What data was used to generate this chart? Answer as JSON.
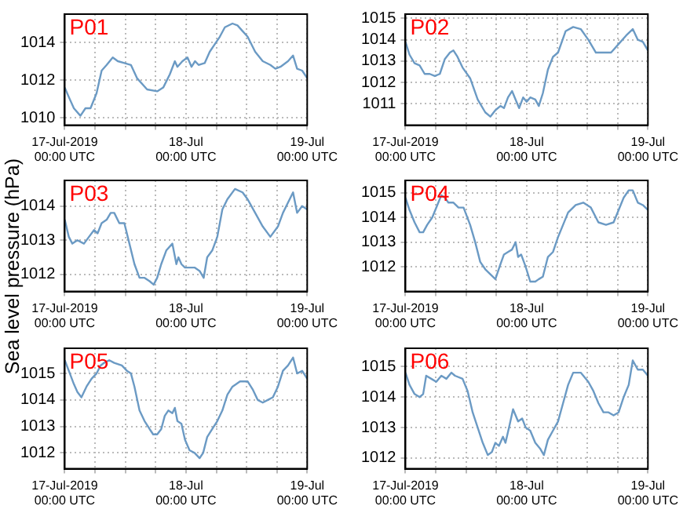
{
  "chart_data": [
    {
      "type": "line",
      "title": "P01",
      "xlim": [
        "2019-07-17T00:00",
        "2019-07-19T00:00"
      ],
      "xticks": [
        {
          "value": "2019-07-17T00:00",
          "label": "17-Jul-2019\n00:00 UTC"
        },
        {
          "value": "2019-07-17T06:00",
          "label": null
        },
        {
          "value": "2019-07-17T12:00",
          "label": null
        },
        {
          "value": "2019-07-17T18:00",
          "label": null
        },
        {
          "value": "2019-07-18T00:00",
          "label": "18-Jul\n00:00 UTC"
        },
        {
          "value": "2019-07-18T06:00",
          "label": null
        },
        {
          "value": "2019-07-18T12:00",
          "label": null
        },
        {
          "value": "2019-07-18T18:00",
          "label": null
        },
        {
          "value": "2019-07-19T00:00",
          "label": "19-Jul\n00:00 UTC"
        }
      ],
      "ylim": [
        1009.6,
        1015.5
      ],
      "yticks": [
        1010,
        1012,
        1014
      ],
      "grid": true,
      "x": [
        "2019-07-17T00:00",
        "2019-07-17T00:48",
        "2019-07-17T01:48",
        "2019-07-17T03:06",
        "2019-07-17T04:06",
        "2019-07-17T05:06",
        "2019-07-17T06:18",
        "2019-07-17T07:18",
        "2019-07-17T08:18",
        "2019-07-17T09:30",
        "2019-07-17T10:30",
        "2019-07-17T11:48",
        "2019-07-17T13:06",
        "2019-07-17T14:18",
        "2019-07-17T16:18",
        "2019-07-17T18:18",
        "2019-07-17T19:30",
        "2019-07-17T20:48",
        "2019-07-17T21:48",
        "2019-07-17T22:18",
        "2019-07-17T23:18",
        "2019-07-18T00:18",
        "2019-07-18T01:06",
        "2019-07-18T01:48",
        "2019-07-18T02:30",
        "2019-07-18T03:42",
        "2019-07-18T04:42",
        "2019-07-18T05:42",
        "2019-07-18T06:42",
        "2019-07-18T07:42",
        "2019-07-18T09:12",
        "2019-07-18T10:12",
        "2019-07-18T11:12",
        "2019-07-18T12:12",
        "2019-07-18T13:42",
        "2019-07-18T15:12",
        "2019-07-18T16:42",
        "2019-07-18T17:42",
        "2019-07-18T18:42",
        "2019-07-18T20:12",
        "2019-07-18T21:12",
        "2019-07-18T22:00",
        "2019-07-18T23:00",
        "2019-07-19T00:00"
      ],
      "series": [
        {
          "color": "#6b9ac4",
          "values": [
            1011.6,
            1011.1,
            1010.5,
            1010.1,
            1010.5,
            1010.5,
            1011.3,
            1012.5,
            1012.8,
            1013.2,
            1013.0,
            1012.9,
            1012.8,
            1012.1,
            1011.5,
            1011.4,
            1011.6,
            1012.3,
            1013.0,
            1012.7,
            1013.0,
            1013.2,
            1012.7,
            1013.0,
            1012.8,
            1012.9,
            1013.5,
            1013.9,
            1014.3,
            1014.8,
            1015.0,
            1014.9,
            1014.6,
            1014.3,
            1013.5,
            1013.0,
            1012.8,
            1012.6,
            1012.7,
            1013.0,
            1013.3,
            1012.6,
            1012.5,
            1012.1
          ]
        }
      ]
    },
    {
      "type": "line",
      "title": "P02",
      "xlim": [
        "2019-07-17T00:00",
        "2019-07-19T00:00"
      ],
      "xticks": [
        {
          "value": "2019-07-17T00:00",
          "label": "17-Jul-2019\n00:00 UTC"
        },
        {
          "value": "2019-07-17T06:00",
          "label": null
        },
        {
          "value": "2019-07-17T12:00",
          "label": null
        },
        {
          "value": "2019-07-17T18:00",
          "label": null
        },
        {
          "value": "2019-07-18T00:00",
          "label": "18-Jul\n00:00 UTC"
        },
        {
          "value": "2019-07-18T06:00",
          "label": null
        },
        {
          "value": "2019-07-18T12:00",
          "label": null
        },
        {
          "value": "2019-07-18T18:00",
          "label": null
        },
        {
          "value": "2019-07-19T00:00",
          "label": "19-Jul\n00:00 UTC"
        }
      ],
      "ylim": [
        1010,
        1015.2
      ],
      "yticks": [
        1011,
        1012,
        1013,
        1014,
        1015
      ],
      "grid": true,
      "x": [
        "2019-07-17T00:00",
        "2019-07-17T00:48",
        "2019-07-17T01:48",
        "2019-07-17T02:48",
        "2019-07-17T03:48",
        "2019-07-17T04:48",
        "2019-07-17T05:48",
        "2019-07-17T06:48",
        "2019-07-17T07:48",
        "2019-07-17T08:48",
        "2019-07-17T09:30",
        "2019-07-17T10:18",
        "2019-07-17T11:18",
        "2019-07-17T12:48",
        "2019-07-17T14:18",
        "2019-07-17T15:48",
        "2019-07-17T16:48",
        "2019-07-17T17:48",
        "2019-07-17T18:48",
        "2019-07-17T19:30",
        "2019-07-17T20:18",
        "2019-07-17T21:06",
        "2019-07-17T21:48",
        "2019-07-17T22:30",
        "2019-07-17T23:18",
        "2019-07-18T00:00",
        "2019-07-18T00:42",
        "2019-07-18T01:42",
        "2019-07-18T02:24",
        "2019-07-18T03:12",
        "2019-07-18T04:12",
        "2019-07-18T05:12",
        "2019-07-18T06:12",
        "2019-07-18T07:42",
        "2019-07-18T09:12",
        "2019-07-18T10:42",
        "2019-07-18T12:12",
        "2019-07-18T13:42",
        "2019-07-18T15:12",
        "2019-07-18T16:42",
        "2019-07-18T18:12",
        "2019-07-18T19:42",
        "2019-07-18T21:00",
        "2019-07-18T22:00",
        "2019-07-18T23:00",
        "2019-07-19T00:00"
      ],
      "series": [
        {
          "color": "#6b9ac4",
          "values": [
            1013.9,
            1013.3,
            1012.9,
            1012.8,
            1012.4,
            1012.4,
            1012.3,
            1012.4,
            1013.1,
            1013.4,
            1013.5,
            1013.2,
            1012.7,
            1012.2,
            1011.2,
            1010.6,
            1010.4,
            1010.7,
            1010.9,
            1010.8,
            1011.3,
            1011.6,
            1011.2,
            1010.8,
            1011.3,
            1011.1,
            1011.3,
            1011.2,
            1010.9,
            1011.5,
            1012.6,
            1013.2,
            1013.4,
            1014.4,
            1014.6,
            1014.5,
            1014.0,
            1013.4,
            1013.4,
            1013.4,
            1013.8,
            1014.2,
            1014.5,
            1014.0,
            1013.9,
            1013.5
          ]
        }
      ]
    },
    {
      "type": "line",
      "title": "P03",
      "ylabel": "Sea level pressure (hPa)",
      "xlim": [
        "2019-07-17T00:00",
        "2019-07-19T00:00"
      ],
      "xticks": [
        {
          "value": "2019-07-17T00:00",
          "label": "17-Jul-2019\n00:00 UTC"
        },
        {
          "value": "2019-07-17T06:00",
          "label": null
        },
        {
          "value": "2019-07-17T12:00",
          "label": null
        },
        {
          "value": "2019-07-17T18:00",
          "label": null
        },
        {
          "value": "2019-07-18T00:00",
          "label": "18-Jul\n00:00 UTC"
        },
        {
          "value": "2019-07-18T06:00",
          "label": null
        },
        {
          "value": "2019-07-18T12:00",
          "label": null
        },
        {
          "value": "2019-07-18T18:00",
          "label": null
        },
        {
          "value": "2019-07-19T00:00",
          "label": "19-Jul\n00:00 UTC"
        }
      ],
      "ylim": [
        1011.5,
        1014.75
      ],
      "yticks": [
        1012,
        1013,
        1014
      ],
      "grid": true,
      "x": [
        "2019-07-17T00:00",
        "2019-07-17T00:48",
        "2019-07-17T01:30",
        "2019-07-17T02:30",
        "2019-07-17T03:48",
        "2019-07-17T04:48",
        "2019-07-17T05:48",
        "2019-07-17T06:30",
        "2019-07-17T07:18",
        "2019-07-17T08:18",
        "2019-07-17T09:06",
        "2019-07-17T09:48",
        "2019-07-17T10:48",
        "2019-07-17T11:48",
        "2019-07-17T12:48",
        "2019-07-17T13:48",
        "2019-07-17T14:48",
        "2019-07-17T15:48",
        "2019-07-17T16:48",
        "2019-07-17T17:36",
        "2019-07-17T18:18",
        "2019-07-17T19:06",
        "2019-07-17T20:06",
        "2019-07-17T21:18",
        "2019-07-17T22:06",
        "2019-07-17T22:30",
        "2019-07-17T23:06",
        "2019-07-17T23:48",
        "2019-07-18T00:42",
        "2019-07-18T01:42",
        "2019-07-18T02:42",
        "2019-07-18T03:30",
        "2019-07-18T04:12",
        "2019-07-18T05:12",
        "2019-07-18T06:12",
        "2019-07-18T07:12",
        "2019-07-18T08:12",
        "2019-07-18T09:42",
        "2019-07-18T11:12",
        "2019-07-18T12:12",
        "2019-07-18T13:42",
        "2019-07-18T15:12",
        "2019-07-18T16:42",
        "2019-07-18T18:12",
        "2019-07-18T19:12",
        "2019-07-18T20:12",
        "2019-07-18T21:12",
        "2019-07-18T22:00",
        "2019-07-18T23:00",
        "2019-07-19T00:00"
      ],
      "series": [
        {
          "color": "#6b9ac4",
          "values": [
            1013.6,
            1013.1,
            1012.9,
            1013.0,
            1012.9,
            1013.1,
            1013.3,
            1013.2,
            1013.5,
            1013.6,
            1013.8,
            1013.8,
            1013.5,
            1013.5,
            1012.9,
            1012.3,
            1011.9,
            1011.9,
            1011.8,
            1011.7,
            1011.9,
            1012.3,
            1012.7,
            1012.9,
            1012.3,
            1012.5,
            1012.3,
            1012.2,
            1012.2,
            1012.2,
            1012.1,
            1011.9,
            1012.5,
            1012.7,
            1013.1,
            1013.9,
            1014.2,
            1014.5,
            1014.4,
            1014.2,
            1013.8,
            1013.4,
            1013.1,
            1013.4,
            1013.8,
            1014.1,
            1014.4,
            1013.8,
            1014.0,
            1013.9
          ]
        }
      ]
    },
    {
      "type": "line",
      "title": "P04",
      "xlim": [
        "2019-07-17T00:00",
        "2019-07-19T00:00"
      ],
      "xticks": [
        {
          "value": "2019-07-17T00:00",
          "label": "17-Jul-2019\n00:00 UTC"
        },
        {
          "value": "2019-07-17T06:00",
          "label": null
        },
        {
          "value": "2019-07-17T12:00",
          "label": null
        },
        {
          "value": "2019-07-17T18:00",
          "label": null
        },
        {
          "value": "2019-07-18T00:00",
          "label": "18-Jul\n00:00 UTC"
        },
        {
          "value": "2019-07-18T06:00",
          "label": null
        },
        {
          "value": "2019-07-18T12:00",
          "label": null
        },
        {
          "value": "2019-07-18T18:00",
          "label": null
        },
        {
          "value": "2019-07-19T00:00",
          "label": "19-Jul\n00:00 UTC"
        }
      ],
      "ylim": [
        1011,
        1015.5
      ],
      "yticks": [
        1012,
        1013,
        1014,
        1015
      ],
      "grid": true,
      "x": [
        "2019-07-17T00:00",
        "2019-07-17T00:48",
        "2019-07-17T01:48",
        "2019-07-17T02:48",
        "2019-07-17T03:30",
        "2019-07-17T04:18",
        "2019-07-17T05:18",
        "2019-07-17T06:18",
        "2019-07-17T07:06",
        "2019-07-17T07:48",
        "2019-07-17T08:30",
        "2019-07-17T09:30",
        "2019-07-17T10:30",
        "2019-07-17T11:30",
        "2019-07-17T12:48",
        "2019-07-17T13:48",
        "2019-07-17T14:48",
        "2019-07-17T15:48",
        "2019-07-17T16:48",
        "2019-07-17T17:48",
        "2019-07-17T18:48",
        "2019-07-17T19:30",
        "2019-07-17T20:18",
        "2019-07-17T21:06",
        "2019-07-17T21:48",
        "2019-07-17T22:18",
        "2019-07-17T22:54",
        "2019-07-17T23:48",
        "2019-07-18T00:42",
        "2019-07-18T01:42",
        "2019-07-18T02:24",
        "2019-07-18T03:12",
        "2019-07-18T04:12",
        "2019-07-18T05:12",
        "2019-07-18T06:12",
        "2019-07-18T07:12",
        "2019-07-18T08:12",
        "2019-07-18T09:42",
        "2019-07-18T11:12",
        "2019-07-18T12:42",
        "2019-07-18T14:12",
        "2019-07-18T15:42",
        "2019-07-18T17:12",
        "2019-07-18T18:12",
        "2019-07-18T19:12",
        "2019-07-18T20:12",
        "2019-07-18T21:00",
        "2019-07-18T22:00",
        "2019-07-18T23:00",
        "2019-07-19T00:00"
      ],
      "series": [
        {
          "color": "#6b9ac4",
          "values": [
            1014.8,
            1014.3,
            1013.8,
            1013.4,
            1013.4,
            1013.7,
            1014.0,
            1014.5,
            1014.9,
            1014.8,
            1014.6,
            1014.6,
            1014.4,
            1014.4,
            1013.7,
            1013.0,
            1012.2,
            1011.9,
            1011.7,
            1011.5,
            1012.1,
            1012.5,
            1012.6,
            1012.7,
            1013.0,
            1012.4,
            1012.5,
            1012.0,
            1011.4,
            1011.4,
            1011.5,
            1011.6,
            1012.4,
            1012.6,
            1013.2,
            1013.7,
            1014.2,
            1014.5,
            1014.6,
            1014.4,
            1013.8,
            1013.7,
            1013.8,
            1014.3,
            1014.8,
            1015.1,
            1015.1,
            1014.6,
            1014.5,
            1014.3
          ]
        }
      ]
    },
    {
      "type": "line",
      "title": "P05",
      "xlim": [
        "2019-07-17T00:00",
        "2019-07-19T00:00"
      ],
      "xticks": [
        {
          "value": "2019-07-17T00:00",
          "label": "17-Jul-2019\n00:00 UTC"
        },
        {
          "value": "2019-07-17T06:00",
          "label": null
        },
        {
          "value": "2019-07-17T12:00",
          "label": null
        },
        {
          "value": "2019-07-17T18:00",
          "label": null
        },
        {
          "value": "2019-07-18T00:00",
          "label": "18-Jul\n00:00 UTC"
        },
        {
          "value": "2019-07-18T06:00",
          "label": null
        },
        {
          "value": "2019-07-18T12:00",
          "label": null
        },
        {
          "value": "2019-07-18T18:00",
          "label": null
        },
        {
          "value": "2019-07-19T00:00",
          "label": "19-Jul\n00:00 UTC"
        }
      ],
      "ylim": [
        1011.4,
        1015.95
      ],
      "yticks": [
        1012,
        1013,
        1014,
        1015
      ],
      "grid": true,
      "x": [
        "2019-07-17T00:00",
        "2019-07-17T00:48",
        "2019-07-17T01:48",
        "2019-07-17T02:30",
        "2019-07-17T03:18",
        "2019-07-17T04:18",
        "2019-07-17T05:18",
        "2019-07-17T06:18",
        "2019-07-17T07:06",
        "2019-07-17T07:48",
        "2019-07-17T08:48",
        "2019-07-17T09:48",
        "2019-07-17T11:18",
        "2019-07-17T12:18",
        "2019-07-17T13:06",
        "2019-07-17T13:48",
        "2019-07-17T14:48",
        "2019-07-17T15:48",
        "2019-07-17T16:48",
        "2019-07-17T17:30",
        "2019-07-17T18:18",
        "2019-07-17T19:06",
        "2019-07-17T19:48",
        "2019-07-17T20:30",
        "2019-07-17T21:18",
        "2019-07-17T21:48",
        "2019-07-17T22:18",
        "2019-07-17T23:06",
        "2019-07-17T23:48",
        "2019-07-18T00:42",
        "2019-07-18T01:42",
        "2019-07-18T02:42",
        "2019-07-18T03:24",
        "2019-07-18T04:12",
        "2019-07-18T05:12",
        "2019-07-18T06:12",
        "2019-07-18T07:12",
        "2019-07-18T08:12",
        "2019-07-18T09:12",
        "2019-07-18T10:42",
        "2019-07-18T12:12",
        "2019-07-18T13:12",
        "2019-07-18T14:12",
        "2019-07-18T15:12",
        "2019-07-18T16:12",
        "2019-07-18T17:12",
        "2019-07-18T18:12",
        "2019-07-18T19:12",
        "2019-07-18T20:12",
        "2019-07-18T21:12",
        "2019-07-18T22:00",
        "2019-07-18T23:00",
        "2019-07-19T00:00"
      ],
      "series": [
        {
          "color": "#6b9ac4",
          "values": [
            1015.5,
            1015.1,
            1014.6,
            1014.3,
            1014.1,
            1014.5,
            1014.8,
            1015.0,
            1015.3,
            1015.4,
            1015.5,
            1015.4,
            1015.3,
            1015.1,
            1015.0,
            1014.5,
            1013.6,
            1013.2,
            1012.9,
            1012.7,
            1012.7,
            1012.9,
            1013.4,
            1013.6,
            1013.5,
            1013.7,
            1013.2,
            1013.1,
            1012.5,
            1012.1,
            1012.0,
            1011.8,
            1012.0,
            1012.6,
            1012.9,
            1013.2,
            1013.6,
            1014.2,
            1014.5,
            1014.7,
            1014.7,
            1014.4,
            1014.0,
            1013.9,
            1014.0,
            1014.1,
            1014.5,
            1015.1,
            1015.3,
            1015.6,
            1015.0,
            1015.1,
            1014.8
          ]
        }
      ]
    },
    {
      "type": "line",
      "title": "P06",
      "xlim": [
        "2019-07-17T00:00",
        "2019-07-19T00:00"
      ],
      "xticks": [
        {
          "value": "2019-07-17T00:00",
          "label": "17-Jul-2019\n00:00 UTC"
        },
        {
          "value": "2019-07-17T06:00",
          "label": null
        },
        {
          "value": "2019-07-17T12:00",
          "label": null
        },
        {
          "value": "2019-07-17T18:00",
          "label": null
        },
        {
          "value": "2019-07-18T00:00",
          "label": "18-Jul\n00:00 UTC"
        },
        {
          "value": "2019-07-18T06:00",
          "label": null
        },
        {
          "value": "2019-07-18T12:00",
          "label": null
        },
        {
          "value": "2019-07-18T18:00",
          "label": null
        },
        {
          "value": "2019-07-19T00:00",
          "label": "19-Jul\n00:00 UTC"
        }
      ],
      "ylim": [
        1011.65,
        1015.6
      ],
      "yticks": [
        1012,
        1013,
        1014,
        1015
      ],
      "grid": true,
      "x": [
        "2019-07-17T00:00",
        "2019-07-17T00:48",
        "2019-07-17T01:48",
        "2019-07-17T02:48",
        "2019-07-17T03:30",
        "2019-07-17T04:06",
        "2019-07-17T05:06",
        "2019-07-17T06:06",
        "2019-07-17T07:06",
        "2019-07-17T08:06",
        "2019-07-17T09:06",
        "2019-07-17T09:48",
        "2019-07-17T11:18",
        "2019-07-17T12:18",
        "2019-07-17T13:18",
        "2019-07-17T14:18",
        "2019-07-17T15:18",
        "2019-07-17T16:18",
        "2019-07-17T17:06",
        "2019-07-17T17:48",
        "2019-07-17T18:30",
        "2019-07-17T19:18",
        "2019-07-17T19:48",
        "2019-07-17T20:30",
        "2019-07-17T21:18",
        "2019-07-17T21:48",
        "2019-07-17T22:18",
        "2019-07-17T23:06",
        "2019-07-17T23:48",
        "2019-07-18T00:42",
        "2019-07-18T01:42",
        "2019-07-18T02:42",
        "2019-07-18T03:24",
        "2019-07-18T04:12",
        "2019-07-18T05:12",
        "2019-07-18T06:12",
        "2019-07-18T07:12",
        "2019-07-18T08:12",
        "2019-07-18T09:12",
        "2019-07-18T10:42",
        "2019-07-18T12:12",
        "2019-07-18T13:12",
        "2019-07-18T14:12",
        "2019-07-18T15:12",
        "2019-07-18T16:12",
        "2019-07-18T17:12",
        "2019-07-18T18:12",
        "2019-07-18T19:12",
        "2019-07-18T20:12",
        "2019-07-18T21:00",
        "2019-07-18T22:00",
        "2019-07-18T23:00",
        "2019-07-19T00:00"
      ],
      "series": [
        {
          "color": "#6b9ac4",
          "values": [
            1014.8,
            1014.4,
            1014.1,
            1014.0,
            1014.1,
            1014.7,
            1014.6,
            1014.5,
            1014.7,
            1014.6,
            1014.8,
            1014.7,
            1014.6,
            1014.2,
            1013.5,
            1013.0,
            1012.5,
            1012.1,
            1012.2,
            1012.5,
            1012.4,
            1012.7,
            1012.5,
            1013.0,
            1013.6,
            1013.4,
            1013.2,
            1013.3,
            1013.0,
            1012.9,
            1012.5,
            1012.3,
            1012.1,
            1012.6,
            1012.9,
            1013.2,
            1013.8,
            1014.4,
            1014.8,
            1014.8,
            1014.5,
            1014.2,
            1013.8,
            1013.5,
            1013.5,
            1013.4,
            1013.5,
            1014.0,
            1014.4,
            1015.2,
            1014.9,
            1014.9,
            1014.7
          ]
        }
      ]
    }
  ]
}
